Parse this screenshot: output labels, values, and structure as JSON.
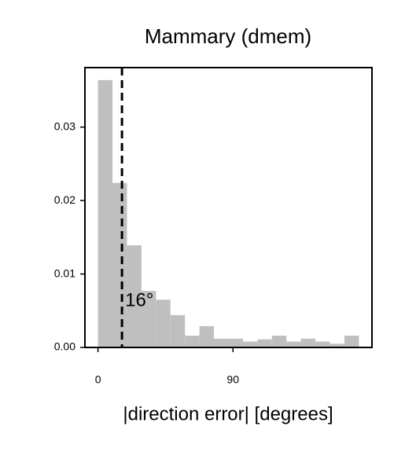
{
  "chart_data": {
    "type": "histogram",
    "title": "Mammary (dmem)",
    "xlabel": "|direction error| [degrees]",
    "bins": [
      0,
      9.67,
      19.33,
      29,
      38.67,
      48.33,
      58,
      67.67,
      77.33,
      87,
      96.67,
      106.33,
      116,
      125.67,
      135.33,
      145,
      154.67,
      164.33,
      174
    ],
    "values": [
      0.0364,
      0.0224,
      0.0139,
      0.0077,
      0.0065,
      0.0044,
      0.0016,
      0.0029,
      0.0012,
      0.0012,
      0.0008,
      0.0011,
      0.0016,
      0.0008,
      0.0012,
      0.0008,
      0.0005,
      0.0016
    ],
    "color": "#bfbfbf",
    "xlim": [
      -8.7,
      182.7
    ],
    "xticks": [
      0,
      90
    ],
    "ylim": [
      0,
      0.0381
    ],
    "yticks": [
      {
        "value": 0,
        "label": "0.00"
      },
      {
        "value": 0.01,
        "label": "0.01"
      },
      {
        "value": 0.02,
        "label": "0.02"
      },
      {
        "value": 0.03,
        "label": "0.03"
      }
    ],
    "vline": 16,
    "annotation": "16°"
  }
}
